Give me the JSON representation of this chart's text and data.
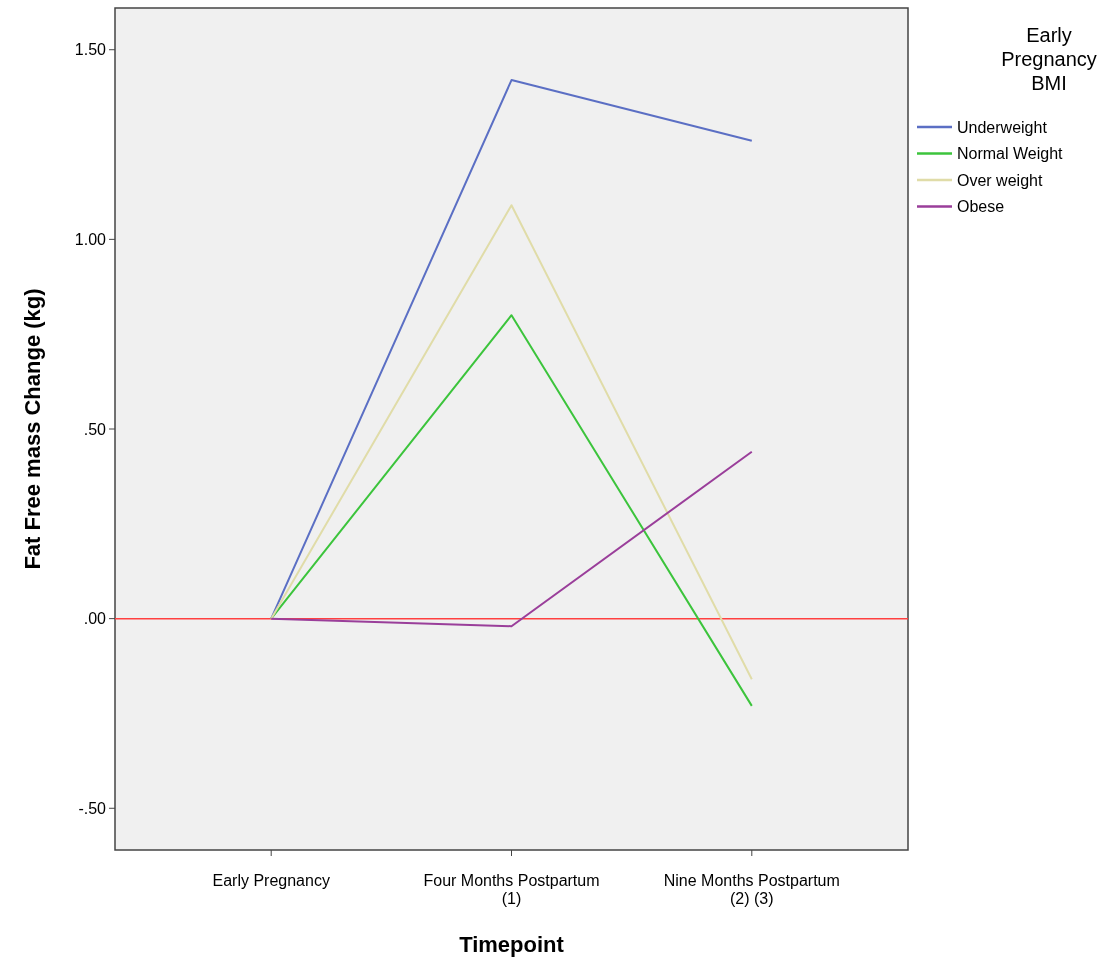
{
  "chart_data": {
    "type": "line",
    "xlabel": "Timepoint",
    "ylabel": "Fat Free mass Change (kg)",
    "legend_title": "Early Pregnancy BMI",
    "legend": "top right",
    "grid": false,
    "marker": "none",
    "categories": [
      "Early Pregnancy",
      "Four Months Postpartum\n(1)",
      "Nine Months Postpartum\n(2) (3)"
    ],
    "ylim": [
      -0.61,
      1.61
    ],
    "yticks": [
      {
        "value": -0.5,
        "label": "-.50"
      },
      {
        "value": 0,
        "label": ".00"
      },
      {
        "value": 0.5,
        "label": ".50"
      },
      {
        "value": 1,
        "label": "1.00"
      },
      {
        "value": 1.5,
        "label": "1.50"
      }
    ],
    "ref_lines": [
      {
        "axis": "y",
        "value": 0,
        "color": "#ff4040"
      }
    ],
    "series": [
      {
        "name": "Underweight",
        "color": "#5b6fc4",
        "values": [
          0,
          1.42,
          1.26
        ]
      },
      {
        "name": "Normal Weight",
        "color": "#3cc43c",
        "values": [
          0,
          0.8,
          -0.23
        ]
      },
      {
        "name": "Over weight",
        "color": "#e0dca8",
        "values": [
          0,
          1.09,
          -0.16
        ]
      },
      {
        "name": "Obese",
        "color": "#9a3e9a",
        "values": [
          0,
          -0.02,
          0.44
        ]
      }
    ]
  }
}
